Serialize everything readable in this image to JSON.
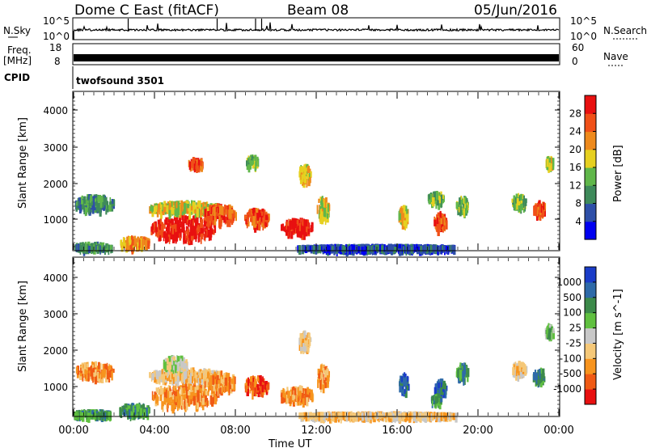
{
  "header": {
    "title": "Dome C East (fitACF)",
    "beam": "Beam 08",
    "date": "05/Jun/2016"
  },
  "top_panels": {
    "nsky_label": "N.Sky",
    "nsky_ticks": [
      "10^5",
      "10^0"
    ],
    "nsearch_label": "N.Search",
    "nsearch_ticks": [
      "10^5",
      "10^0"
    ],
    "freq_label": "Freq.",
    "freq_unit": "[MHz]",
    "freq_ticks": [
      "18",
      "8"
    ],
    "nave_label": "Nave",
    "nave_ticks": [
      "60",
      "0"
    ],
    "cpid_label": "CPID",
    "cpid_value": "twofsound 3501"
  },
  "chart_data": [
    {
      "type": "heatmap",
      "title": "",
      "ylabel": "Slant Range [km]",
      "xlabel": "",
      "ylim": [
        180,
        4600
      ],
      "yticks": [
        "4000",
        "3000",
        "2000",
        "1000"
      ],
      "colorbar_label": "Power [dB]",
      "colorbar_ticks": [
        "28",
        "24",
        "20",
        "16",
        "12",
        "8",
        "4"
      ],
      "colors": [
        "#0000f0",
        "#2e4fa8",
        "#3e8a5a",
        "#60b74a",
        "#e6d020",
        "#ee8a1c",
        "#f05018",
        "#e81010"
      ],
      "blobs": [
        {
          "t": 1.0,
          "r": 1500,
          "w": 1.9,
          "h": 420,
          "v": 2
        },
        {
          "t": 0.9,
          "r": 310,
          "w": 1.9,
          "h": 150,
          "v": 2
        },
        {
          "t": 3.0,
          "r": 420,
          "w": 1.5,
          "h": 300,
          "v": 5
        },
        {
          "t": 5.4,
          "r": 800,
          "w": 3.2,
          "h": 650,
          "v": 7
        },
        {
          "t": 5.5,
          "r": 1380,
          "w": 3.6,
          "h": 300,
          "v": 4
        },
        {
          "t": 6.0,
          "r": 2600,
          "w": 0.7,
          "h": 250,
          "v": 6
        },
        {
          "t": 7.2,
          "r": 1200,
          "w": 1.6,
          "h": 500,
          "v": 6
        },
        {
          "t": 9.0,
          "r": 1100,
          "w": 1.2,
          "h": 450,
          "v": 6
        },
        {
          "t": 8.8,
          "r": 2650,
          "w": 0.6,
          "h": 300,
          "v": 3
        },
        {
          "t": 11.0,
          "r": 850,
          "w": 1.6,
          "h": 400,
          "v": 7
        },
        {
          "t": 11.4,
          "r": 2300,
          "w": 0.6,
          "h": 500,
          "v": 4
        },
        {
          "t": 12.3,
          "r": 1350,
          "w": 0.6,
          "h": 600,
          "v": 4
        },
        {
          "t": 16.3,
          "r": 1150,
          "w": 0.5,
          "h": 500,
          "v": 4
        },
        {
          "t": 18.1,
          "r": 1000,
          "w": 0.6,
          "h": 450,
          "v": 6
        },
        {
          "t": 17.9,
          "r": 1650,
          "w": 0.8,
          "h": 300,
          "v": 3
        },
        {
          "t": 19.2,
          "r": 1450,
          "w": 0.6,
          "h": 450,
          "v": 3
        },
        {
          "t": 22.0,
          "r": 1550,
          "w": 0.7,
          "h": 350,
          "v": 3
        },
        {
          "t": 23.0,
          "r": 1350,
          "w": 0.6,
          "h": 350,
          "v": 6
        },
        {
          "t": 23.5,
          "r": 2600,
          "w": 0.4,
          "h": 300,
          "v": 4
        },
        {
          "t": 15.0,
          "r": 280,
          "w": 8.0,
          "h": 90,
          "v": 1
        }
      ]
    },
    {
      "type": "heatmap",
      "title": "",
      "ylabel": "Slant Range [km]",
      "xlabel": "Time UT",
      "ylim": [
        180,
        4600
      ],
      "yticks": [
        "4000",
        "3000",
        "2000",
        "1000"
      ],
      "xticks": [
        "00:00",
        "04:00",
        "08:00",
        "12:00",
        "16:00",
        "20:00",
        "00:00"
      ],
      "xlim": [
        0,
        24
      ],
      "colorbar_label": "Velocity [m s^-1]",
      "colorbar_ticks": [
        "1000",
        "500",
        "100",
        "25",
        "-25",
        "-100",
        "-500",
        "-1000"
      ],
      "colors": [
        "#e81010",
        "#f05a14",
        "#f7941e",
        "#f5c878",
        "#c8c8c8",
        "#60c040",
        "#3c8a4a",
        "#2e6aa8",
        "#1a3cc8"
      ],
      "blobs": [
        {
          "t": 1.0,
          "r": 1500,
          "w": 1.9,
          "h": 420,
          "v": 2
        },
        {
          "t": 0.9,
          "r": 310,
          "w": 1.9,
          "h": 150,
          "v": 6
        },
        {
          "t": 3.0,
          "r": 420,
          "w": 1.5,
          "h": 300,
          "v": 6
        },
        {
          "t": 5.4,
          "r": 800,
          "w": 3.2,
          "h": 650,
          "v": 2
        },
        {
          "t": 5.5,
          "r": 1380,
          "w": 3.6,
          "h": 300,
          "v": 3
        },
        {
          "t": 5.0,
          "r": 1700,
          "w": 1.2,
          "h": 350,
          "v": 4
        },
        {
          "t": 7.2,
          "r": 1200,
          "w": 1.6,
          "h": 500,
          "v": 2
        },
        {
          "t": 9.0,
          "r": 1100,
          "w": 1.2,
          "h": 450,
          "v": 1
        },
        {
          "t": 11.0,
          "r": 850,
          "w": 1.6,
          "h": 400,
          "v": 2
        },
        {
          "t": 11.4,
          "r": 2300,
          "w": 0.6,
          "h": 500,
          "v": 3
        },
        {
          "t": 12.3,
          "r": 1350,
          "w": 0.6,
          "h": 600,
          "v": 2
        },
        {
          "t": 16.3,
          "r": 1150,
          "w": 0.5,
          "h": 500,
          "v": 7
        },
        {
          "t": 18.1,
          "r": 1000,
          "w": 0.6,
          "h": 450,
          "v": 7
        },
        {
          "t": 17.9,
          "r": 700,
          "w": 0.5,
          "h": 250,
          "v": 6
        },
        {
          "t": 19.2,
          "r": 1450,
          "w": 0.6,
          "h": 450,
          "v": 6
        },
        {
          "t": 22.0,
          "r": 1550,
          "w": 0.7,
          "h": 350,
          "v": 3
        },
        {
          "t": 23.0,
          "r": 1350,
          "w": 0.6,
          "h": 350,
          "v": 6
        },
        {
          "t": 23.5,
          "r": 2600,
          "w": 0.4,
          "h": 300,
          "v": 5
        },
        {
          "t": 15.0,
          "r": 280,
          "w": 8.0,
          "h": 90,
          "v": 3
        }
      ]
    }
  ]
}
